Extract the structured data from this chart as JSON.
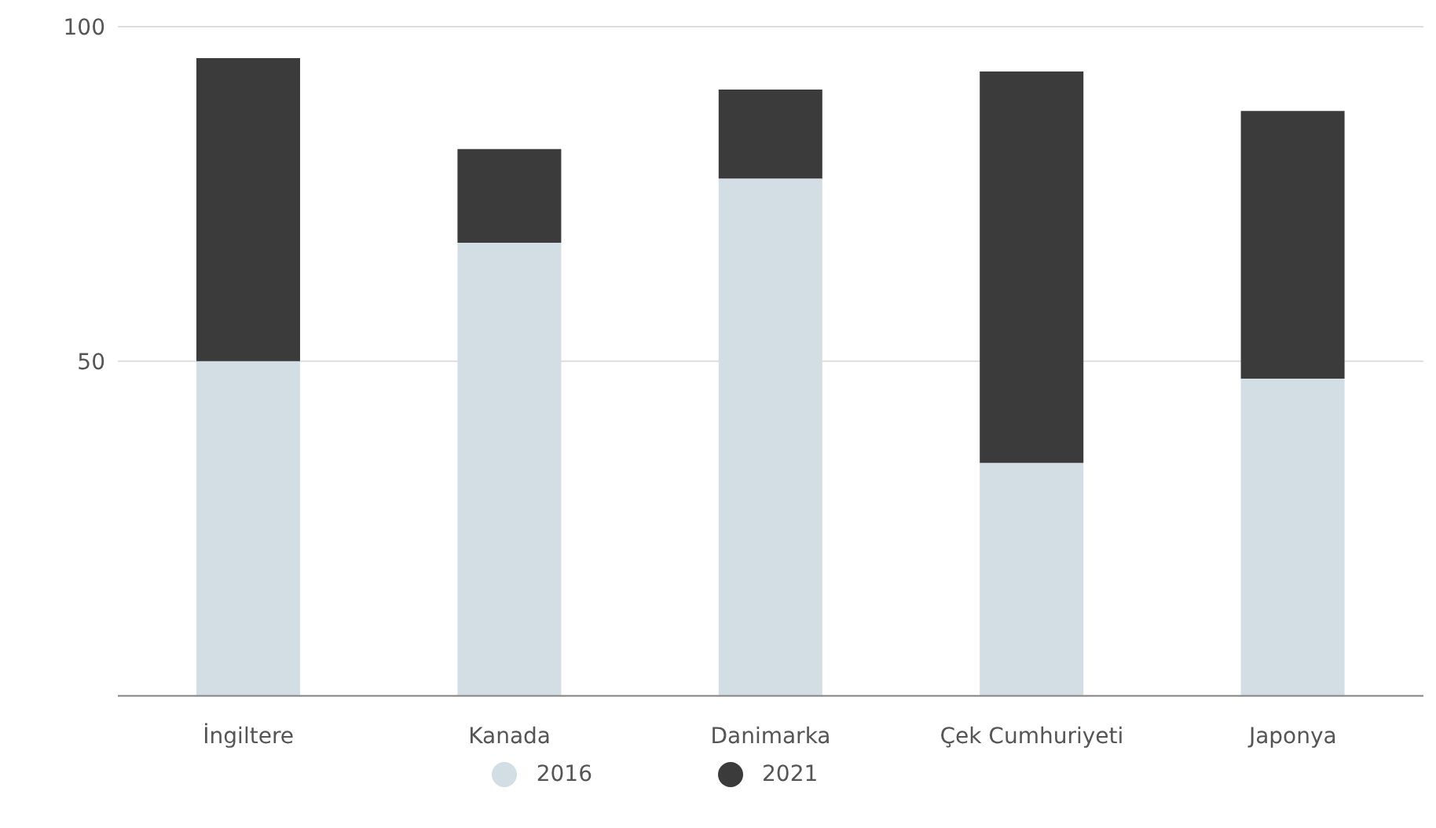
{
  "chart_data": {
    "type": "bar",
    "stacked": true,
    "categories": [
      "İngiltere",
      "Kanada",
      "Danimarka",
      "Çek Cumhuriyeti",
      "Japonya"
    ],
    "series": [
      {
        "name": "2016",
        "color": "#d2dde4",
        "values": [
          50,
          67.7,
          77.3,
          34.8,
          47.4
        ]
      },
      {
        "name": "2021",
        "color": "#3b3b3b",
        "values": [
          45.3,
          14,
          13.3,
          58.5,
          40
        ]
      }
    ],
    "ylim": [
      0,
      100
    ],
    "yticks": [
      50,
      100
    ],
    "grid": "y",
    "legend": "bottom"
  }
}
